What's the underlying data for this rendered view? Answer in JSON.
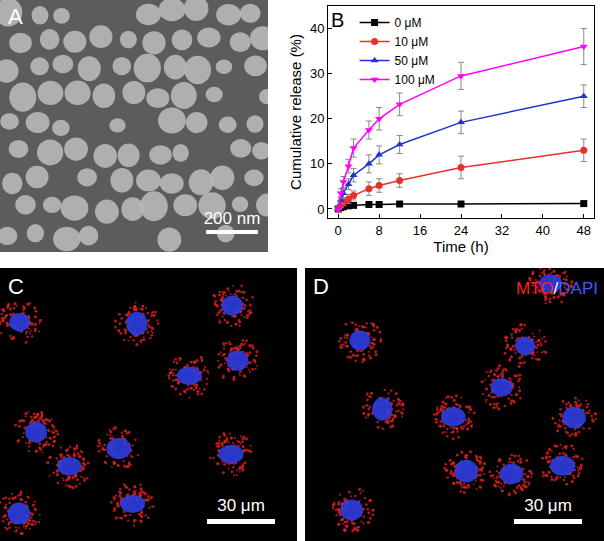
{
  "chart_data": {
    "type": "scatter",
    "panel_label": "B",
    "x_label": "Time (h)",
    "y_label": "Cumulative release (%)",
    "x": [
      0,
      0.5,
      1,
      2,
      3,
      6,
      8,
      12,
      24,
      48
    ],
    "xlim": [
      -2,
      50
    ],
    "xticks": [
      0,
      8,
      16,
      24,
      32,
      40,
      48
    ],
    "ylim": [
      -2,
      45
    ],
    "yticks": [
      0,
      10,
      20,
      30,
      40
    ],
    "legend": "upper left",
    "series": [
      {
        "name": "0 μM",
        "color": "#000000",
        "marker": "square",
        "line_style": "solid",
        "values": [
          0,
          0.3,
          0.5,
          0.7,
          0.8,
          1.0,
          1.0,
          1.1,
          1.1,
          1.2
        ],
        "error": [
          0,
          0.2,
          0.2,
          0.3,
          0.3,
          0.3,
          0.3,
          0.3,
          0.3,
          0.3
        ]
      },
      {
        "name": "10 μM",
        "color": "#e8302a",
        "marker": "circle",
        "line_style": "solid",
        "values": [
          0,
          0.8,
          1.5,
          2.2,
          3.0,
          4.5,
          5.2,
          6.3,
          9.2,
          13.0
        ],
        "error": [
          0,
          0.5,
          0.8,
          1.0,
          1.0,
          1.5,
          1.5,
          1.5,
          2.5,
          2.5
        ]
      },
      {
        "name": "50 μM",
        "color": "#2233cc",
        "marker": "triangle-up",
        "line_style": "solid",
        "values": [
          0,
          2.0,
          3.5,
          5.5,
          7.5,
          10.0,
          12.0,
          14.3,
          19.2,
          25.0
        ],
        "error": [
          0,
          0.8,
          1.0,
          1.2,
          1.5,
          2.0,
          2.0,
          2.0,
          2.5,
          2.5
        ]
      },
      {
        "name": "100 μM",
        "color": "#ff00ff",
        "marker": "triangle-down",
        "line_style": "solid",
        "values": [
          0,
          3.5,
          6.0,
          9.5,
          13.5,
          17.5,
          20.0,
          23.2,
          29.5,
          36.0
        ],
        "error": [
          0,
          1.0,
          1.2,
          1.5,
          2.0,
          2.0,
          2.5,
          2.5,
          3.0,
          4.0
        ]
      }
    ]
  },
  "panels": {
    "A": {
      "label": "A",
      "scale_bar": "200 nm"
    },
    "C": {
      "label": "C",
      "scale_bar": "30 μm"
    },
    "D": {
      "label": "D",
      "scale_bar": "30 μm",
      "stain_label": [
        {
          "text": "MTO",
          "color": "#ff2020"
        },
        {
          "text": "/",
          "color": "#ffffff"
        },
        {
          "text": "DAPI",
          "color": "#3a5bff"
        }
      ]
    }
  }
}
